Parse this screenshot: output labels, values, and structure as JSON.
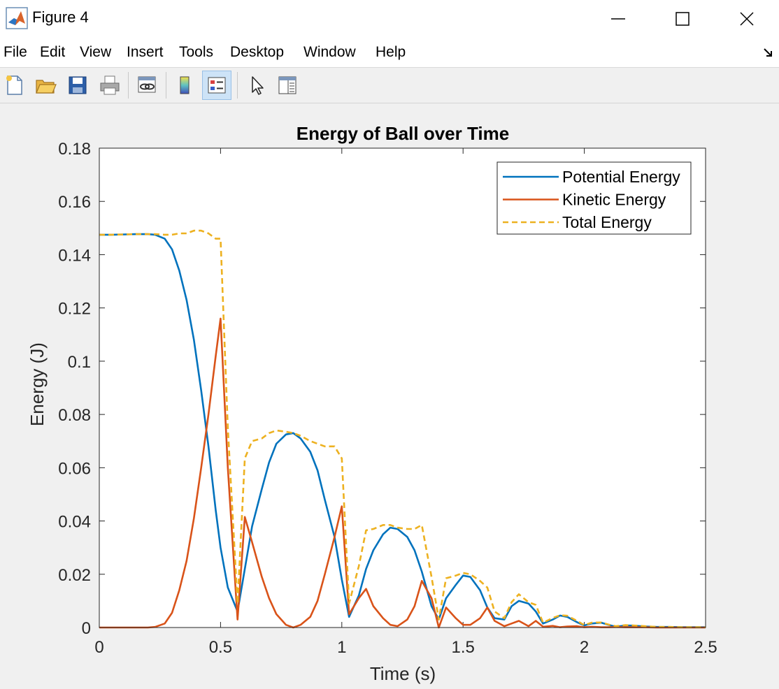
{
  "window": {
    "title": "Figure 4",
    "controls": [
      "minimize",
      "maximize",
      "close"
    ]
  },
  "menu": [
    "File",
    "Edit",
    "View",
    "Insert",
    "Tools",
    "Desktop",
    "Window",
    "Help"
  ],
  "toolbar": [
    {
      "name": "new-figure-icon"
    },
    {
      "name": "open-file-icon"
    },
    {
      "name": "save-icon"
    },
    {
      "name": "print-icon"
    },
    {
      "name": "link-plot-icon"
    },
    {
      "name": "insert-colorbar-icon"
    },
    {
      "name": "insert-legend-icon",
      "active": true
    },
    {
      "name": "edit-plot-pointer-icon"
    },
    {
      "name": "property-inspector-icon"
    }
  ],
  "chart_data": {
    "type": "line",
    "title": "Energy of Ball over Time",
    "xlabel": "Time (s)",
    "ylabel": "Energy (J)",
    "xlim": [
      0,
      2.5
    ],
    "ylim": [
      0,
      0.18
    ],
    "xticks": [
      "0",
      "0.5",
      "1",
      "1.5",
      "2",
      "2.5"
    ],
    "yticks": [
      "0",
      "0.02",
      "0.04",
      "0.06",
      "0.08",
      "0.1",
      "0.12",
      "0.14",
      "0.16",
      "0.18"
    ],
    "grid": false,
    "legend_position": "top-right",
    "series": [
      {
        "name": "Potential Energy",
        "color": "#0072bd",
        "style": "solid",
        "x": [
          0,
          0.05,
          0.1,
          0.15,
          0.2,
          0.23,
          0.27,
          0.3,
          0.33,
          0.36,
          0.39,
          0.42,
          0.45,
          0.48,
          0.5,
          0.53,
          0.57,
          0.6,
          0.63,
          0.67,
          0.7,
          0.73,
          0.77,
          0.8,
          0.83,
          0.87,
          0.9,
          0.93,
          0.97,
          1.0,
          1.03,
          1.07,
          1.1,
          1.13,
          1.17,
          1.2,
          1.23,
          1.27,
          1.3,
          1.33,
          1.37,
          1.4,
          1.43,
          1.47,
          1.5,
          1.53,
          1.57,
          1.6,
          1.63,
          1.67,
          1.7,
          1.73,
          1.77,
          1.8,
          1.83,
          1.87,
          1.9,
          1.93,
          1.97,
          2.0,
          2.03,
          2.07,
          2.1,
          2.13,
          2.17,
          2.2,
          2.25,
          2.3,
          2.35,
          2.4,
          2.45,
          2.5
        ],
        "values": [
          0.1475,
          0.1475,
          0.1476,
          0.1477,
          0.1477,
          0.1475,
          0.146,
          0.142,
          0.134,
          0.123,
          0.108,
          0.089,
          0.068,
          0.044,
          0.03,
          0.015,
          0.006,
          0.022,
          0.038,
          0.052,
          0.062,
          0.069,
          0.0725,
          0.073,
          0.071,
          0.066,
          0.059,
          0.048,
          0.034,
          0.018,
          0.004,
          0.012,
          0.022,
          0.029,
          0.035,
          0.0375,
          0.037,
          0.034,
          0.029,
          0.021,
          0.008,
          0.003,
          0.011,
          0.016,
          0.0195,
          0.019,
          0.014,
          0.0075,
          0.0035,
          0.003,
          0.008,
          0.01,
          0.009,
          0.006,
          0.0015,
          0.003,
          0.0045,
          0.004,
          0.002,
          0.0008,
          0.0015,
          0.0018,
          0.001,
          0.0003,
          0.0008,
          0.0007,
          0.0004,
          0.0002,
          0.0002,
          0.0001,
          0.0001,
          0.0001
        ]
      },
      {
        "name": "Kinetic Energy",
        "color": "#d95319",
        "style": "solid",
        "x": [
          0,
          0.05,
          0.1,
          0.15,
          0.2,
          0.23,
          0.27,
          0.3,
          0.33,
          0.36,
          0.39,
          0.42,
          0.45,
          0.48,
          0.5,
          0.53,
          0.57,
          0.6,
          0.63,
          0.67,
          0.7,
          0.73,
          0.77,
          0.8,
          0.83,
          0.87,
          0.9,
          0.93,
          0.97,
          1.0,
          1.03,
          1.07,
          1.1,
          1.13,
          1.17,
          1.2,
          1.23,
          1.27,
          1.3,
          1.33,
          1.37,
          1.4,
          1.43,
          1.47,
          1.5,
          1.53,
          1.57,
          1.6,
          1.63,
          1.67,
          1.7,
          1.73,
          1.77,
          1.8,
          1.83,
          1.87,
          1.9,
          1.93,
          1.97,
          2.0,
          2.03,
          2.07,
          2.1,
          2.13,
          2.17,
          2.2,
          2.25,
          2.3,
          2.35,
          2.4,
          2.45,
          2.5
        ],
        "values": [
          0,
          0,
          0,
          0,
          0,
          0.0002,
          0.0015,
          0.0055,
          0.014,
          0.025,
          0.041,
          0.06,
          0.08,
          0.102,
          0.116,
          0.06,
          0.003,
          0.0415,
          0.032,
          0.019,
          0.011,
          0.005,
          0.001,
          0,
          0.001,
          0.004,
          0.01,
          0.02,
          0.034,
          0.0455,
          0.005,
          0.011,
          0.0145,
          0.008,
          0.0035,
          0.001,
          0.0005,
          0.003,
          0.008,
          0.0175,
          0.011,
          0,
          0.0075,
          0.0035,
          0.001,
          0.001,
          0.0035,
          0.0075,
          0.0025,
          0.0005,
          0.0015,
          0.0025,
          0.0005,
          0.0025,
          0.0003,
          0.0006,
          0.0001,
          0.0004,
          0.0005,
          0.0001,
          0.0003,
          0.0001,
          0.0001,
          0.0002,
          0.0001,
          0.0001,
          0.0001,
          0,
          0,
          0,
          0,
          0
        ]
      },
      {
        "name": "Total Energy",
        "color": "#edb120",
        "style": "dashed",
        "x": [
          0,
          0.05,
          0.1,
          0.15,
          0.2,
          0.23,
          0.27,
          0.3,
          0.33,
          0.36,
          0.39,
          0.42,
          0.45,
          0.48,
          0.5,
          0.53,
          0.57,
          0.6,
          0.63,
          0.67,
          0.7,
          0.73,
          0.77,
          0.8,
          0.83,
          0.87,
          0.9,
          0.93,
          0.97,
          1.0,
          1.03,
          1.07,
          1.1,
          1.13,
          1.17,
          1.2,
          1.23,
          1.27,
          1.3,
          1.33,
          1.37,
          1.4,
          1.43,
          1.47,
          1.5,
          1.53,
          1.57,
          1.6,
          1.63,
          1.67,
          1.7,
          1.73,
          1.77,
          1.8,
          1.83,
          1.87,
          1.9,
          1.93,
          1.97,
          2.0,
          2.03,
          2.07,
          2.1,
          2.13,
          2.17,
          2.2,
          2.25,
          2.3,
          2.35,
          2.4,
          2.45,
          2.5
        ],
        "values": [
          0.1475,
          0.1475,
          0.1476,
          0.1477,
          0.1477,
          0.1477,
          0.1475,
          0.1475,
          0.148,
          0.148,
          0.149,
          0.149,
          0.148,
          0.146,
          0.146,
          0.075,
          0.009,
          0.0635,
          0.07,
          0.071,
          0.073,
          0.074,
          0.0735,
          0.073,
          0.072,
          0.07,
          0.069,
          0.068,
          0.068,
          0.0635,
          0.009,
          0.023,
          0.0365,
          0.037,
          0.0385,
          0.0385,
          0.0375,
          0.037,
          0.037,
          0.0385,
          0.019,
          0.003,
          0.0185,
          0.0195,
          0.0205,
          0.02,
          0.0175,
          0.015,
          0.006,
          0.0035,
          0.0095,
          0.0125,
          0.0095,
          0.0085,
          0.0018,
          0.0036,
          0.0046,
          0.0044,
          0.0025,
          0.0009,
          0.0018,
          0.0019,
          0.0011,
          0.0005,
          0.0009,
          0.0008,
          0.0005,
          0.0002,
          0.0002,
          0.0001,
          0.0001,
          0.0001
        ]
      }
    ]
  }
}
